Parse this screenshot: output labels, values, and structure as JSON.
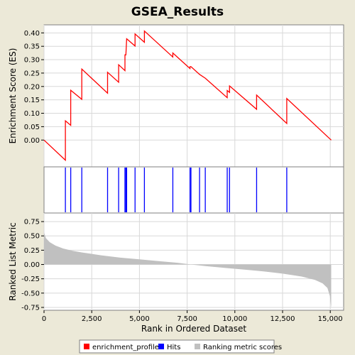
{
  "chart_data": {
    "title": "GSEA_Results",
    "xlabel": "Rank in Ordered Dataset",
    "x_range": [
      0,
      15700
    ],
    "x_ticks": [
      0,
      2500,
      5000,
      7500,
      10000,
      12500,
      15000
    ],
    "x_tick_labels": [
      "0",
      "2,500",
      "5,000",
      "7,500",
      "10,000",
      "12,500",
      "15,000"
    ],
    "panels": [
      {
        "type": "line",
        "name": "enrichment-panel",
        "ylabel": "Enrichment Score (ES)",
        "ylim": [
          -0.1,
          0.43
        ],
        "y_ticks": [
          0.0,
          0.05,
          0.1,
          0.15,
          0.2,
          0.25,
          0.3,
          0.35,
          0.4
        ],
        "y_tick_labels": [
          "0.00",
          "0.05",
          "0.10",
          "0.15",
          "0.20",
          "0.25",
          "0.30",
          "0.35",
          "0.40"
        ],
        "grid": true,
        "series": [
          {
            "name": "enrichment_profile",
            "color": "#ff0000",
            "points": [
              [
                0,
                0.0
              ],
              [
                1120,
                -0.075
              ],
              [
                1120,
                0.072
              ],
              [
                1400,
                0.055
              ],
              [
                1400,
                0.186
              ],
              [
                1980,
                0.152
              ],
              [
                1980,
                0.265
              ],
              [
                3330,
                0.175
              ],
              [
                3330,
                0.253
              ],
              [
                3910,
                0.216
              ],
              [
                3910,
                0.281
              ],
              [
                4240,
                0.259
              ],
              [
                4240,
                0.318
              ],
              [
                4290,
                0.318
              ],
              [
                4330,
                0.378
              ],
              [
                4770,
                0.351
              ],
              [
                4770,
                0.396
              ],
              [
                5260,
                0.365
              ],
              [
                5260,
                0.407
              ],
              [
                6750,
                0.31
              ],
              [
                6750,
                0.325
              ],
              [
                7650,
                0.267
              ],
              [
                7650,
                0.274
              ],
              [
                7700,
                0.274
              ],
              [
                8150,
                0.245
              ],
              [
                8450,
                0.231
              ],
              [
                9600,
                0.158
              ],
              [
                9600,
                0.185
              ],
              [
                9720,
                0.178
              ],
              [
                9720,
                0.202
              ],
              [
                11140,
                0.115
              ],
              [
                11140,
                0.168
              ],
              [
                12720,
                0.062
              ],
              [
                12720,
                0.155
              ],
              [
                15050,
                0.0
              ]
            ]
          }
        ]
      },
      {
        "type": "hits",
        "name": "hits-panel",
        "legend_name": "Hits",
        "color": "#0000ff",
        "positions": [
          1120,
          1400,
          1980,
          3330,
          3910,
          4240,
          4290,
          4330,
          4770,
          5260,
          6750,
          7650,
          7700,
          8150,
          8450,
          9600,
          9720,
          11140,
          12720
        ]
      },
      {
        "type": "area",
        "name": "ranking-panel",
        "ylabel": "Ranked List Metric",
        "legend_name": "Ranking metric scores",
        "ylim": [
          -0.8,
          0.9
        ],
        "y_ticks": [
          -0.75,
          -0.5,
          -0.25,
          0.0,
          0.25,
          0.5,
          0.75
        ],
        "y_tick_labels": [
          "-0.75",
          "-0.50",
          "-0.25",
          "0.00",
          "0.25",
          "0.50",
          "0.75"
        ],
        "grid": true,
        "color": "#c0c0c0",
        "points": [
          [
            0,
            0.56
          ],
          [
            100,
            0.46
          ],
          [
            300,
            0.39
          ],
          [
            600,
            0.33
          ],
          [
            1000,
            0.28
          ],
          [
            1500,
            0.24
          ],
          [
            2000,
            0.21
          ],
          [
            3000,
            0.16
          ],
          [
            4000,
            0.12
          ],
          [
            5000,
            0.09
          ],
          [
            6000,
            0.06
          ],
          [
            7000,
            0.03
          ],
          [
            7700,
            0.0
          ],
          [
            8500,
            -0.03
          ],
          [
            9500,
            -0.06
          ],
          [
            10500,
            -0.09
          ],
          [
            11500,
            -0.12
          ],
          [
            12500,
            -0.16
          ],
          [
            13500,
            -0.21
          ],
          [
            14200,
            -0.27
          ],
          [
            14600,
            -0.33
          ],
          [
            14850,
            -0.41
          ],
          [
            14980,
            -0.55
          ],
          [
            15050,
            -0.76
          ]
        ]
      }
    ],
    "legend": {
      "placement": "bottom",
      "entries": [
        {
          "label": "enrichment_profile",
          "color": "#ff0000"
        },
        {
          "label": "Hits",
          "color": "#0000ff"
        },
        {
          "label": "Ranking metric scores",
          "color": "#c0c0c0"
        }
      ]
    }
  }
}
